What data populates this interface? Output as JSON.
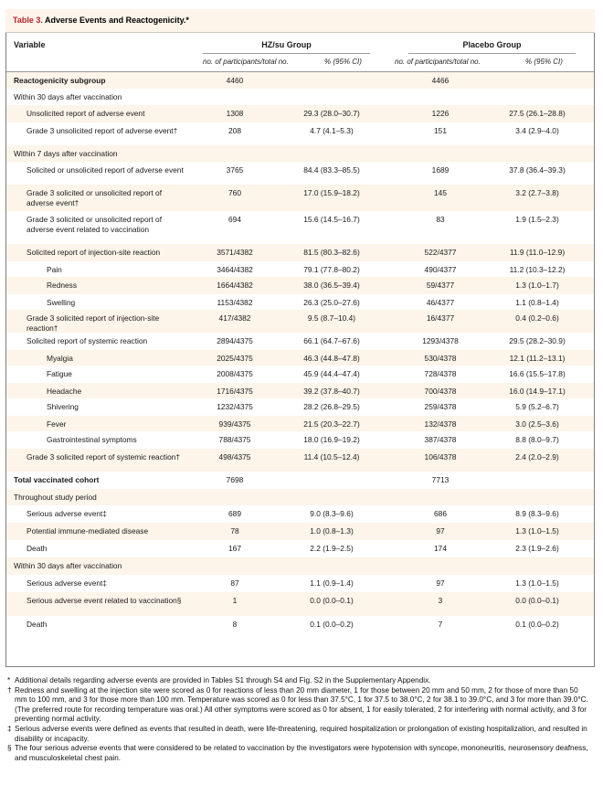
{
  "table": {
    "label": "Table 3.",
    "title": "Adverse Events and Reactogenicity.*"
  },
  "headers": {
    "variable": "Variable",
    "group1": "HZ/su Group",
    "group2": "Placebo Group",
    "sub_n": "no. of participants/total no.",
    "sub_pct": "% (95% CI)"
  },
  "rows": [
    {
      "label": "Reactogenicity subgroup",
      "indent": 0,
      "bold": true,
      "n1": "4460",
      "p1": "",
      "n2": "4466",
      "p2": "",
      "shade": true
    },
    {
      "label": "Within 30 days after vaccination",
      "indent": 0,
      "bold": false,
      "n1": "",
      "p1": "",
      "n2": "",
      "p2": "",
      "shade": false
    },
    {
      "label": "Unsolicited report of adverse event",
      "indent": 1,
      "bold": false,
      "n1": "1308",
      "p1": "29.3 (28.0–30.7)",
      "n2": "1226",
      "p2": "27.5 (26.1–28.8)",
      "shade": true
    },
    {
      "label": "Grade 3 unsolicited report of adverse event†",
      "indent": 1,
      "bold": false,
      "n1": "208",
      "p1": "4.7 (4.1–5.3)",
      "n2": "151",
      "p2": "3.4 (2.9–4.0)",
      "shade": false
    },
    {
      "label": "Within 7 days after vaccination",
      "indent": 0,
      "bold": false,
      "n1": "",
      "p1": "",
      "n2": "",
      "p2": "",
      "shade": true
    },
    {
      "label": "Solicited or unsolicited report of adverse event",
      "indent": 1,
      "bold": false,
      "n1": "3765",
      "p1": "84.4 (83.3–85.5)",
      "n2": "1689",
      "p2": "37.8 (36.4–39.3)",
      "shade": false
    },
    {
      "label": "Grade 3 solicited or unsolicited report of adverse event†",
      "indent": 1,
      "bold": false,
      "n1": "760",
      "p1": "17.0 (15.9–18.2)",
      "n2": "145",
      "p2": "3.2 (2.7–3.8)",
      "shade": true
    },
    {
      "label": "Grade 3 solicited or unsolicited report of adverse event related to vaccination",
      "indent": 1,
      "bold": false,
      "n1": "694",
      "p1": "15.6 (14.5–16.7)",
      "n2": "83",
      "p2": "1.9 (1.5–2.3)",
      "shade": false
    },
    {
      "label": "Solicited report of injection-site reaction",
      "indent": 1,
      "bold": false,
      "n1": "3571/4382",
      "p1": "81.5 (80.3–82.6)",
      "n2": "522/4377",
      "p2": "11.9 (11.0–12.9)",
      "shade": true
    },
    {
      "label": "Pain",
      "indent": 2,
      "bold": false,
      "n1": "3464/4382",
      "p1": "79.1 (77.8–80.2)",
      "n2": "490/4377",
      "p2": "11.2 (10.3–12.2)",
      "shade": false
    },
    {
      "label": "Redness",
      "indent": 2,
      "bold": false,
      "n1": "1664/4382",
      "p1": "38.0 (36.5–39.4)",
      "n2": "59/4377",
      "p2": "1.3 (1.0–1.7)",
      "shade": true
    },
    {
      "label": "Swelling",
      "indent": 2,
      "bold": false,
      "n1": "1153/4382",
      "p1": "26.3 (25.0–27.6)",
      "n2": "46/4377",
      "p2": "1.1 (0.8–1.4)",
      "shade": false
    },
    {
      "label": "Grade 3 solicited report of injection-site reaction†",
      "indent": 1,
      "bold": false,
      "n1": "417/4382",
      "p1": "9.5 (8.7–10.4)",
      "n2": "16/4377",
      "p2": "0.4 (0.2–0.6)",
      "shade": true
    },
    {
      "label": "Solicited report of systemic reaction",
      "indent": 1,
      "bold": false,
      "n1": "2894/4375",
      "p1": "66.1 (64.7–67.6)",
      "n2": "1293/4378",
      "p2": "29.5 (28.2–30.9)",
      "shade": false
    },
    {
      "label": "Myalgia",
      "indent": 2,
      "bold": false,
      "n1": "2025/4375",
      "p1": "46.3 (44.8–47.8)",
      "n2": "530/4378",
      "p2": "12.1 (11.2–13.1)",
      "shade": true
    },
    {
      "label": "Fatigue",
      "indent": 2,
      "bold": false,
      "n1": "2008/4375",
      "p1": "45.9 (44.4–47.4)",
      "n2": "728/4378",
      "p2": "16.6 (15.5–17.8)",
      "shade": false
    },
    {
      "label": "Headache",
      "indent": 2,
      "bold": false,
      "n1": "1716/4375",
      "p1": "39.2 (37.8–40.7)",
      "n2": "700/4378",
      "p2": "16.0 (14.9–17.1)",
      "shade": true
    },
    {
      "label": "Shivering",
      "indent": 2,
      "bold": false,
      "n1": "1232/4375",
      "p1": "28.2 (26.8–29.5)",
      "n2": "259/4378",
      "p2": "5.9 (5.2–6.7)",
      "shade": false
    },
    {
      "label": "Fever",
      "indent": 2,
      "bold": false,
      "n1": "939/4375",
      "p1": "21.5 (20.3–22.7)",
      "n2": "132/4378",
      "p2": "3.0 (2.5–3.6)",
      "shade": true
    },
    {
      "label": "Gastrointestinal symptoms",
      "indent": 2,
      "bold": false,
      "n1": "788/4375",
      "p1": "18.0 (16.9–19.2)",
      "n2": "387/4378",
      "p2": "8.8 (8.0–9.7)",
      "shade": false
    },
    {
      "label": "Grade 3 solicited report of systemic reaction†",
      "indent": 1,
      "bold": false,
      "n1": "498/4375",
      "p1": "11.4 (10.5–12.4)",
      "n2": "106/4378",
      "p2": "2.4 (2.0–2.9)",
      "shade": true
    },
    {
      "label": "Total vaccinated cohort",
      "indent": 0,
      "bold": true,
      "n1": "7698",
      "p1": "",
      "n2": "7713",
      "p2": "",
      "shade": false
    },
    {
      "label": "Throughout study period",
      "indent": 0,
      "bold": false,
      "n1": "",
      "p1": "",
      "n2": "",
      "p2": "",
      "shade": true
    },
    {
      "label": "Serious adverse event‡",
      "indent": 1,
      "bold": false,
      "n1": "689",
      "p1": "9.0 (8.3–9.6)",
      "n2": "686",
      "p2": "8.9 (8.3–9.6)",
      "shade": false
    },
    {
      "label": "Potential immune-mediated disease",
      "indent": 1,
      "bold": false,
      "n1": "78",
      "p1": "1.0 (0.8–1.3)",
      "n2": "97",
      "p2": "1.3 (1.0–1.5)",
      "shade": true
    },
    {
      "label": "Death",
      "indent": 1,
      "bold": false,
      "n1": "167",
      "p1": "2.2 (1.9–2.5)",
      "n2": "174",
      "p2": "2.3 (1.9–2.6)",
      "shade": false
    },
    {
      "label": "Within 30 days after vaccination",
      "indent": 0,
      "bold": false,
      "n1": "",
      "p1": "",
      "n2": "",
      "p2": "",
      "shade": true
    },
    {
      "label": "Serious adverse event‡",
      "indent": 1,
      "bold": false,
      "n1": "87",
      "p1": "1.1 (0.9–1.4)",
      "n2": "97",
      "p2": "1.3 (1.0–1.5)",
      "shade": false
    },
    {
      "label": "Serious adverse event related to vaccination§",
      "indent": 1,
      "bold": false,
      "n1": "1",
      "p1": "0.0 (0.0–0.1)",
      "n2": "3",
      "p2": "0.0 (0.0–0.1)",
      "shade": true
    },
    {
      "label": "Death",
      "indent": 1,
      "bold": false,
      "n1": "8",
      "p1": "0.1 (0.0–0.2)",
      "n2": "7",
      "p2": "0.1 (0.0–0.2)",
      "shade": false
    }
  ],
  "footnotes": [
    {
      "sym": "*",
      "text": "Additional details regarding adverse events are provided in Tables S1 through S4 and Fig. S2 in the Supplementary Appendix."
    },
    {
      "sym": "†",
      "text": "Redness and swelling at the injection site were scored as 0 for reactions of less than 20 mm diameter, 1 for those between 20 mm and 50 mm, 2 for those of more than 50 mm to 100 mm, and 3 for those more than 100 mm. Temperature was scored as 0 for less than 37.5°C, 1 for 37.5 to 38.0°C, 2 for 38.1 to 39.0°C, and 3 for more than 39.0°C. (The preferred route for recording temperature was oral.) All other symptoms were scored as 0 for absent, 1 for easily tolerated, 2 for interfering with normal activity, and 3 for preventing normal activity."
    },
    {
      "sym": "‡",
      "text": "Serious adverse events were defined as events that resulted in death, were life-threatening, required hospitalization or prolongation of existing hospitalization, and resulted in disability or incapacity."
    },
    {
      "sym": "§",
      "text": "The four serious adverse events that were considered to be related to vaccination by the investigators were hypotension with syncope, mononeuritis, neurosensory deafness, and musculoskeletal chest pain."
    }
  ]
}
